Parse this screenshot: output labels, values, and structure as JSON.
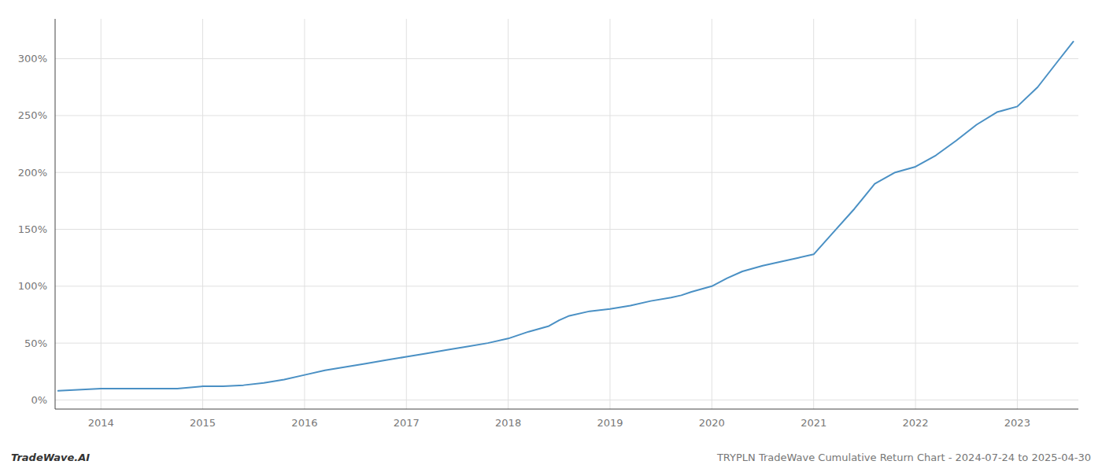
{
  "chart_data": {
    "type": "line",
    "title": "TRYPLN TradeWave Cumulative Return Chart - 2024-07-24 to 2025-04-30",
    "annotations": [
      "TradeWave.AI"
    ],
    "color": "#4a90c4",
    "grid": true,
    "x": [
      2013.58,
      2014.0,
      2014.25,
      2014.5,
      2014.75,
      2015.0,
      2015.2,
      2015.4,
      2015.6,
      2015.8,
      2016.0,
      2016.2,
      2016.4,
      2016.6,
      2016.8,
      2017.0,
      2017.2,
      2017.4,
      2017.6,
      2017.8,
      2018.0,
      2018.2,
      2018.4,
      2018.5,
      2018.6,
      2018.8,
      2019.0,
      2019.2,
      2019.4,
      2019.6,
      2019.7,
      2019.8,
      2020.0,
      2020.15,
      2020.3,
      2020.5,
      2020.7,
      2020.85,
      2021.0,
      2021.2,
      2021.4,
      2021.6,
      2021.8,
      2022.0,
      2022.2,
      2022.4,
      2022.6,
      2022.8,
      2023.0,
      2023.2,
      2023.4,
      2023.55
    ],
    "values": [
      8,
      10,
      10,
      10,
      10,
      12,
      12,
      13,
      15,
      18,
      22,
      26,
      29,
      32,
      35,
      38,
      41,
      44,
      47,
      50,
      54,
      60,
      65,
      70,
      74,
      78,
      80,
      83,
      87,
      90,
      92,
      95,
      100,
      107,
      113,
      118,
      122,
      125,
      128,
      148,
      168,
      190,
      200,
      205,
      215,
      228,
      242,
      253,
      258,
      275,
      298,
      315
    ],
    "xlim": [
      2013.55,
      2023.6
    ],
    "ylim": [
      -8,
      335
    ],
    "xticks": [
      2014,
      2015,
      2016,
      2017,
      2018,
      2019,
      2020,
      2021,
      2022,
      2023
    ],
    "yticks": [
      {
        "value": 0,
        "label": "0%"
      },
      {
        "value": 50,
        "label": "50%"
      },
      {
        "value": 100,
        "label": "100%"
      },
      {
        "value": 150,
        "label": "150%"
      },
      {
        "value": 200,
        "label": "200%"
      },
      {
        "value": 250,
        "label": "250%"
      },
      {
        "value": 300,
        "label": "300%"
      }
    ]
  }
}
